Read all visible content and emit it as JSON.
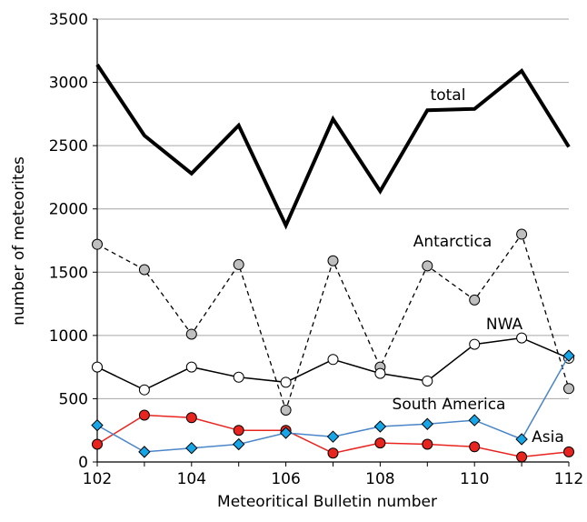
{
  "chart_data": {
    "type": "line",
    "xlabel": "Meteoritical Bulletin number",
    "ylabel": "number of meteorites",
    "x": [
      102,
      103,
      104,
      105,
      106,
      107,
      108,
      109,
      110,
      111,
      112
    ],
    "xlim": [
      102,
      112
    ],
    "ylim": [
      0,
      3500
    ],
    "x_ticks": [
      102,
      104,
      106,
      108,
      110,
      112
    ],
    "y_ticks": [
      0,
      500,
      1000,
      1500,
      2000,
      2500,
      3000,
      3500
    ],
    "grid": "horizontal",
    "legend": "none",
    "series": [
      {
        "name": "total",
        "style": "thick-line",
        "color": "#000000",
        "values": [
          3140,
          2580,
          2280,
          2660,
          1870,
          2710,
          2140,
          2780,
          2790,
          3090,
          2490
        ]
      },
      {
        "name": "Antarctica",
        "style": "dashed-line-gray-circles",
        "color": "#000000",
        "marker_color": "#bfbfbf",
        "values": [
          1720,
          1520,
          1010,
          1560,
          410,
          1590,
          750,
          1550,
          1280,
          1800,
          580
        ]
      },
      {
        "name": "NWA",
        "style": "line-white-circles",
        "color": "#000000",
        "marker_color": "#ffffff",
        "values": [
          750,
          570,
          750,
          670,
          630,
          810,
          700,
          640,
          930,
          980,
          820
        ]
      },
      {
        "name": "South America",
        "style": "line-red-circles",
        "color": "#e8241f",
        "marker_color": "#e8241f",
        "values": [
          140,
          370,
          350,
          250,
          250,
          70,
          150,
          140,
          120,
          40,
          80
        ]
      },
      {
        "name": "Asia",
        "style": "line-blue-diamonds",
        "color": "#4a86c8",
        "marker_color": "#16a6e8",
        "values": [
          290,
          80,
          110,
          140,
          230,
          200,
          280,
          300,
          330,
          180,
          840
        ]
      }
    ]
  }
}
